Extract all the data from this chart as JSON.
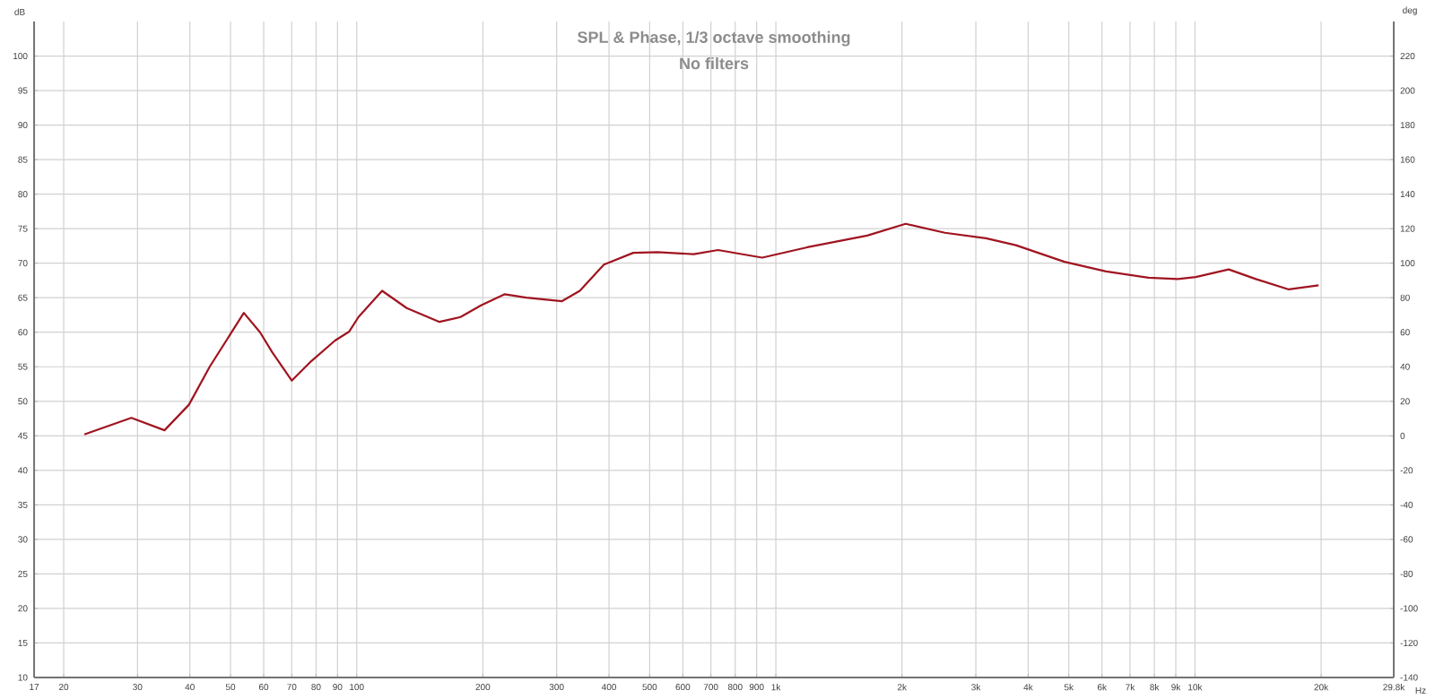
{
  "chart_data": {
    "type": "line",
    "title": "SPL & Phase, 1/3 octave smoothing",
    "subtitle": "No filters",
    "xlabel": "Hz",
    "ylabel": "dB",
    "y2label": "deg",
    "log": "x",
    "grid": true,
    "xlim": [
      17,
      29800
    ],
    "ylim": [
      10,
      105
    ],
    "y2lim": [
      -140,
      240
    ],
    "xticks": [
      17,
      20,
      30,
      40,
      50,
      60,
      70,
      80,
      90,
      100,
      200,
      300,
      400,
      500,
      600,
      700,
      800,
      900,
      {
        "value": 1000,
        "label": "1k"
      },
      {
        "value": 2000,
        "label": "2k"
      },
      {
        "value": 3000,
        "label": "3k"
      },
      {
        "value": 4000,
        "label": "4k"
      },
      {
        "value": 5000,
        "label": "5k"
      },
      {
        "value": 6000,
        "label": "6k"
      },
      {
        "value": 7000,
        "label": "7k"
      },
      {
        "value": 8000,
        "label": "8k"
      },
      {
        "value": 9000,
        "label": "9k"
      },
      {
        "value": 10000,
        "label": "10k"
      },
      {
        "value": 20000,
        "label": "20k"
      },
      {
        "value": 29800,
        "label": "29.8k"
      }
    ],
    "yticks": [
      10,
      15,
      20,
      25,
      30,
      35,
      40,
      45,
      50,
      55,
      60,
      65,
      70,
      75,
      80,
      85,
      90,
      95,
      100
    ],
    "y2ticks": [
      -140,
      -120,
      -100,
      -80,
      -60,
      -40,
      -20,
      0,
      20,
      40,
      60,
      80,
      100,
      120,
      140,
      160,
      180,
      200,
      220
    ],
    "series": [
      {
        "color": "#a01420",
        "x": [
          22.4,
          29,
          34.8,
          39.8,
          44.6,
          53.8,
          58.8,
          62.9,
          70,
          77.9,
          88.8,
          96,
          101,
          115,
          131.6,
          157.6,
          176.9,
          198,
          225.6,
          254,
          309,
          340.7,
          389,
          457,
          522,
          637,
          728,
          928,
          1188,
          1652,
          2040,
          2531,
          3172,
          3740,
          4880,
          6137,
          7752,
          9095,
          10047,
          12036,
          13974,
          16745,
          19720
        ],
        "values": [
          45.2,
          47.6,
          45.8,
          49.5,
          55.0,
          62.8,
          60.0,
          57.1,
          53.0,
          55.8,
          58.8,
          60.1,
          62.2,
          66.0,
          63.5,
          61.5,
          62.2,
          63.9,
          65.5,
          65.0,
          64.5,
          66.0,
          69.8,
          71.5,
          71.6,
          71.3,
          71.9,
          70.8,
          72.3,
          74.0,
          75.7,
          74.4,
          73.6,
          72.6,
          70.2,
          68.8,
          67.9,
          67.7,
          68.0,
          69.1,
          67.7,
          66.2,
          66.8
        ]
      }
    ]
  }
}
